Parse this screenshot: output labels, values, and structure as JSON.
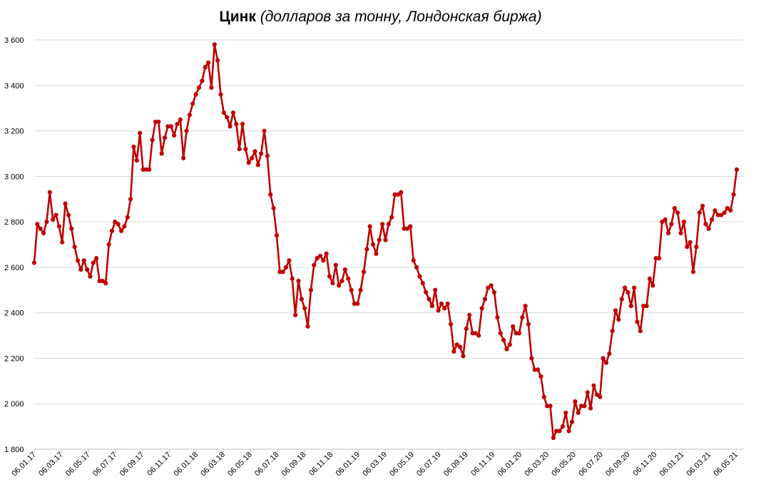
{
  "title": {
    "main": "Цинк",
    "sub": "(долларов за тонну, Лондонская биржа)"
  },
  "colors": {
    "series": "#c00000",
    "grid": "#d9d9d9",
    "axis": "#bfbfbf"
  },
  "chart_data": {
    "type": "line",
    "title": "Цинк (долларов за тонну, Лондонская биржа)",
    "xlabel": "",
    "ylabel": "",
    "ylim": [
      1800,
      3600
    ],
    "yticks": [
      1800,
      2000,
      2200,
      2400,
      2600,
      2800,
      3000,
      3200,
      3400,
      3600
    ],
    "ytick_labels": [
      "1 800",
      "2 000",
      "2 200",
      "2 400",
      "2 600",
      "2 800",
      "3 000",
      "3 200",
      "3 400",
      "3 600"
    ],
    "xtick_labels": [
      "06.01.17",
      "06.03.17",
      "06.05.17",
      "06.07.17",
      "06.09.17",
      "06.11.17",
      "06.01.18",
      "06.03.18",
      "06.05.18",
      "06.07.18",
      "06.09.18",
      "06.11.18",
      "06.01.19",
      "06.03.19",
      "06.05.19",
      "06.07.19",
      "06.09.19",
      "06.11.19",
      "06.01.20",
      "06.03.20",
      "06.05.20",
      "06.07.20",
      "06.09.20",
      "06.11.20",
      "06.01.21",
      "06.03.21",
      "06.05.21"
    ],
    "grid": true,
    "legend": "none",
    "series": [
      {
        "values": [
          2620,
          2790,
          2770,
          2750,
          2800,
          2930,
          2810,
          2830,
          2780,
          2710,
          2880,
          2830,
          2770,
          2690,
          2630,
          2590,
          2630,
          2590,
          2560,
          2620,
          2640,
          2540,
          2540,
          2530,
          2700,
          2760,
          2800,
          2790,
          2760,
          2780,
          2820,
          2900,
          3130,
          3070,
          3190,
          3030,
          3030,
          3030,
          3160,
          3240,
          3240,
          3100,
          3170,
          3220,
          3220,
          3180,
          3230,
          3250,
          3080,
          3200,
          3270,
          3320,
          3360,
          3390,
          3420,
          3480,
          3500,
          3390,
          3580,
          3510,
          3360,
          3280,
          3260,
          3220,
          3280,
          3230,
          3120,
          3230,
          3120,
          3060,
          3080,
          3110,
          3050,
          3100,
          3200,
          3090,
          2920,
          2860,
          2740,
          2580,
          2580,
          2600,
          2630,
          2550,
          2390,
          2540,
          2460,
          2420,
          2340,
          2500,
          2610,
          2640,
          2650,
          2630,
          2660,
          2560,
          2530,
          2610,
          2520,
          2540,
          2590,
          2550,
          2500,
          2440,
          2440,
          2500,
          2580,
          2680,
          2780,
          2700,
          2660,
          2720,
          2790,
          2720,
          2790,
          2820,
          2920,
          2920,
          2930,
          2770,
          2770,
          2780,
          2630,
          2600,
          2560,
          2530,
          2490,
          2460,
          2430,
          2500,
          2410,
          2440,
          2420,
          2440,
          2350,
          2230,
          2260,
          2250,
          2210,
          2330,
          2390,
          2310,
          2310,
          2300,
          2420,
          2460,
          2510,
          2520,
          2490,
          2380,
          2310,
          2280,
          2240,
          2260,
          2340,
          2310,
          2310,
          2380,
          2430,
          2350,
          2200,
          2150,
          2150,
          2120,
          2030,
          1990,
          1990,
          1850,
          1880,
          1880,
          1900,
          1960,
          1880,
          1920,
          2010,
          1960,
          1990,
          1990,
          2050,
          1980,
          2080,
          2040,
          2030,
          2200,
          2180,
          2220,
          2320,
          2410,
          2370,
          2460,
          2510,
          2490,
          2430,
          2510,
          2360,
          2320,
          2430,
          2430,
          2550,
          2520,
          2640,
          2640,
          2800,
          2810,
          2750,
          2790,
          2860,
          2840,
          2750,
          2800,
          2690,
          2710,
          2580,
          2690,
          2840,
          2870,
          2790,
          2770,
          2810,
          2850,
          2830,
          2830,
          2840,
          2860,
          2850,
          2920,
          3030
        ]
      }
    ]
  }
}
